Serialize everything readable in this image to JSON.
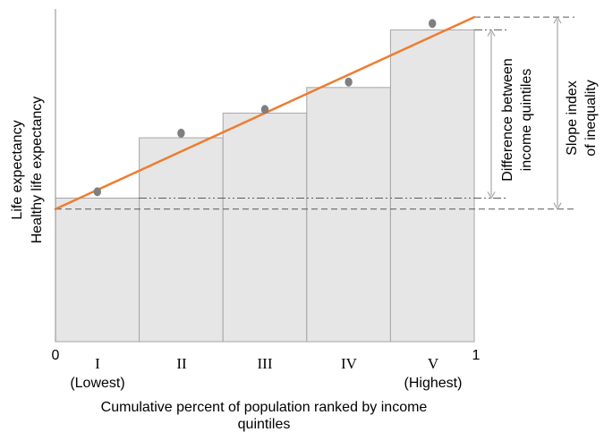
{
  "chart_data": {
    "type": "bar",
    "categories": [
      "I",
      "II",
      "III",
      "IV",
      "V"
    ],
    "category_sublabels": [
      "(Lowest)",
      "",
      "",
      "",
      "(Highest)"
    ],
    "x_edge_labels": [
      "0",
      "1"
    ],
    "xlabel_lines": [
      "Cumulative percent of population ranked by income",
      "quintiles"
    ],
    "ylabel_lines": [
      "Life expectancy",
      "Healthy life expectancy"
    ],
    "ylim": [
      0,
      360
    ],
    "bar_values": [
      157,
      223,
      250,
      278,
      341
    ],
    "point_values": [
      164,
      228,
      254,
      284,
      348
    ],
    "regression_line": {
      "x": [
        0,
        1
      ],
      "y": [
        145,
        355
      ]
    },
    "annotations": {
      "difference": [
        "Difference between",
        "income quintiles"
      ],
      "slope_index": [
        "Slope index",
        "of inequality"
      ]
    },
    "colors": {
      "bar_fill": "#e6e6e6",
      "bar_stroke": "#a6a6a6",
      "regression": "#ed7d31",
      "points": "#7f7f7f",
      "axis": "#8c8c8c",
      "guides": "#595959"
    },
    "grid": false,
    "legend": "none"
  }
}
